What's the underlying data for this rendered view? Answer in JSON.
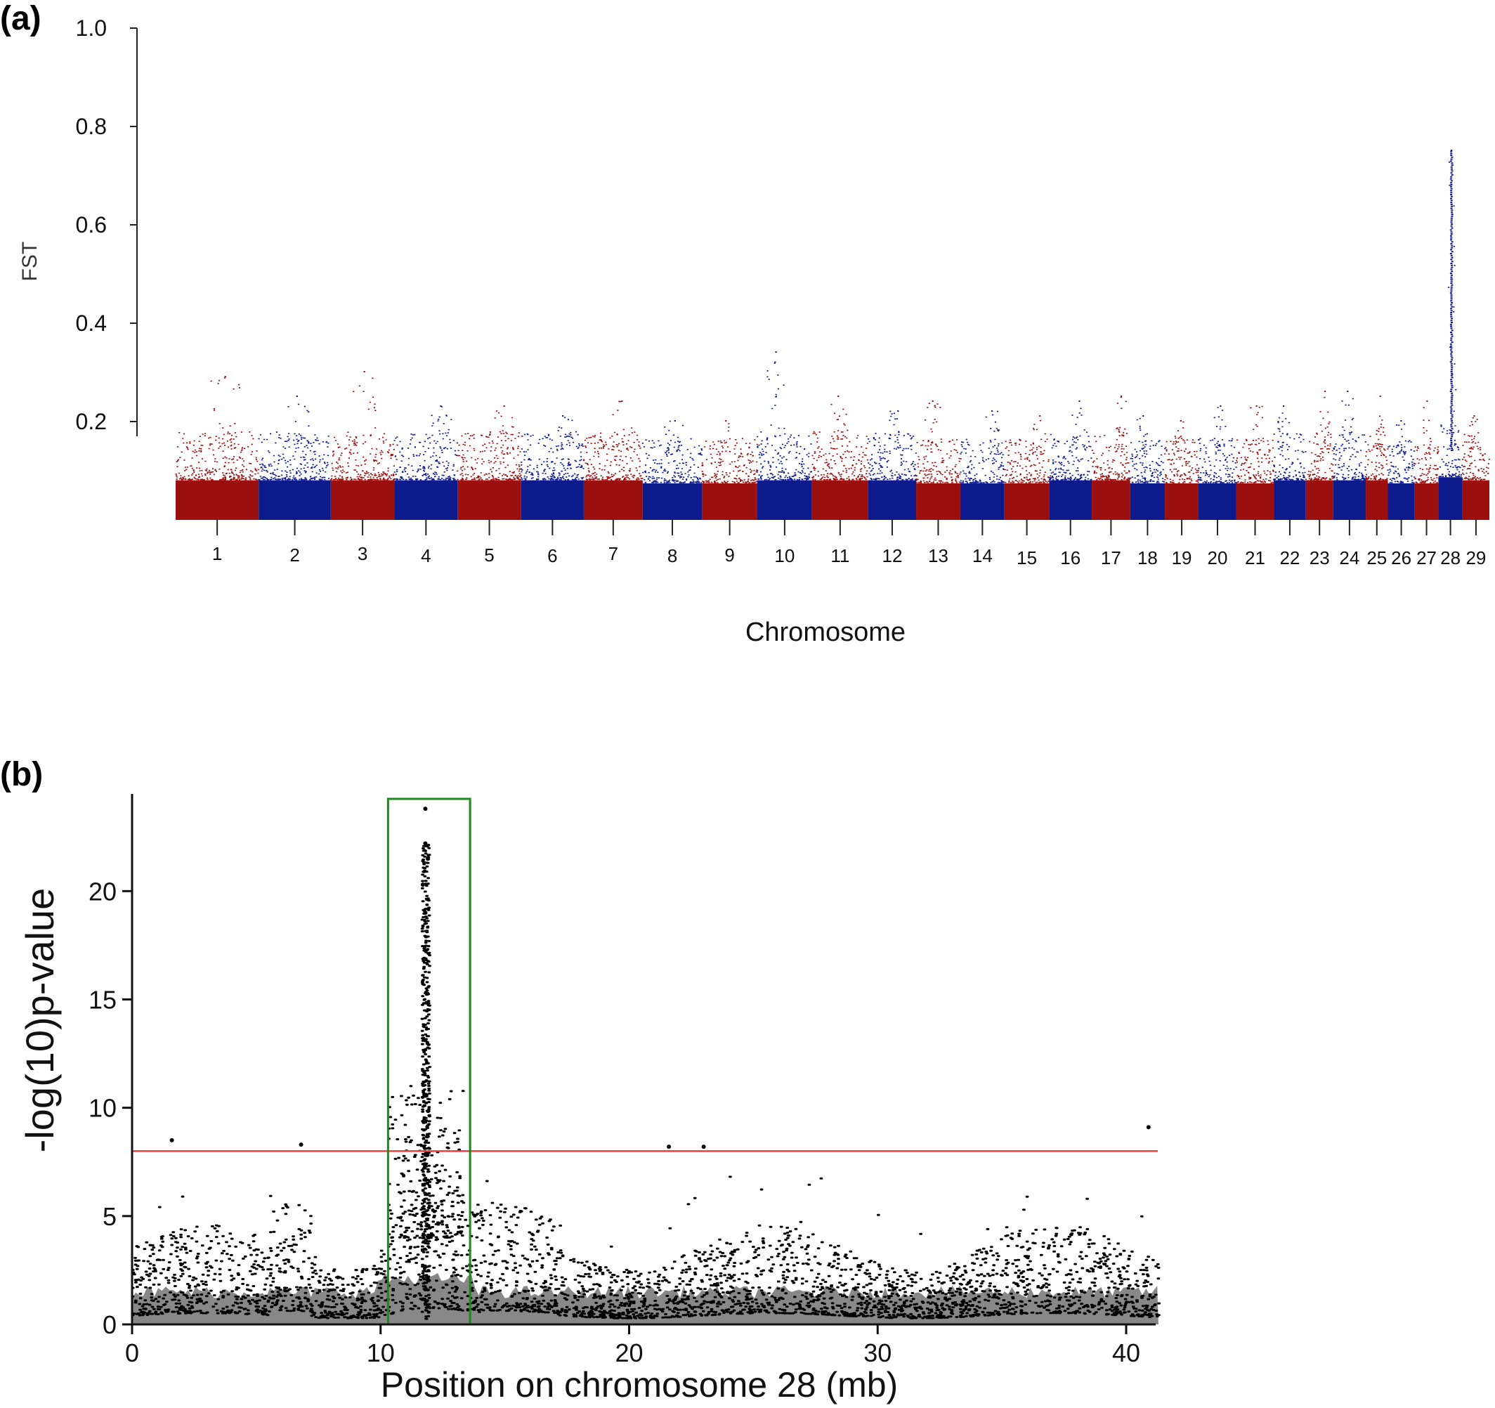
{
  "chart_data": [
    {
      "panel": "(a)",
      "type": "scatter",
      "ylabel": "FST",
      "xlabel": "Chromosome",
      "ylim": [
        0.2,
        1.0
      ],
      "yticks": [
        "0.2",
        "0.4",
        "0.6",
        "0.8",
        "1.0"
      ],
      "colors": [
        "#9b0f0f",
        "#0d1a8c"
      ],
      "chromosomes": [
        {
          "label": "1",
          "size": 158,
          "base": 0.13,
          "peak": 0.29
        },
        {
          "label": "2",
          "size": 137,
          "base": 0.13,
          "peak": 0.25
        },
        {
          "label": "3",
          "size": 121,
          "base": 0.13,
          "peak": 0.3
        },
        {
          "label": "4",
          "size": 120,
          "base": 0.13,
          "peak": 0.23
        },
        {
          "label": "5",
          "size": 121,
          "base": 0.13,
          "peak": 0.23
        },
        {
          "label": "6",
          "size": 119,
          "base": 0.13,
          "peak": 0.21
        },
        {
          "label": "7",
          "size": 112,
          "base": 0.13,
          "peak": 0.24
        },
        {
          "label": "8",
          "size": 113,
          "base": 0.12,
          "peak": 0.2
        },
        {
          "label": "9",
          "size": 105,
          "base": 0.12,
          "peak": 0.2
        },
        {
          "label": "10",
          "size": 104,
          "base": 0.13,
          "peak": 0.34
        },
        {
          "label": "11",
          "size": 107,
          "base": 0.13,
          "peak": 0.25
        },
        {
          "label": "12",
          "size": 91,
          "base": 0.13,
          "peak": 0.22
        },
        {
          "label": "13",
          "size": 84,
          "base": 0.12,
          "peak": 0.24
        },
        {
          "label": "14",
          "size": 84,
          "base": 0.12,
          "peak": 0.22
        },
        {
          "label": "15",
          "size": 85,
          "base": 0.12,
          "peak": 0.21
        },
        {
          "label": "16",
          "size": 81,
          "base": 0.13,
          "peak": 0.24
        },
        {
          "label": "17",
          "size": 73,
          "base": 0.13,
          "peak": 0.25
        },
        {
          "label": "18",
          "size": 66,
          "base": 0.12,
          "peak": 0.21
        },
        {
          "label": "19",
          "size": 64,
          "base": 0.12,
          "peak": 0.2
        },
        {
          "label": "20",
          "size": 72,
          "base": 0.12,
          "peak": 0.23
        },
        {
          "label": "21",
          "size": 71,
          "base": 0.12,
          "peak": 0.23
        },
        {
          "label": "22",
          "size": 61,
          "base": 0.13,
          "peak": 0.23
        },
        {
          "label": "23",
          "size": 52,
          "base": 0.13,
          "peak": 0.26
        },
        {
          "label": "24",
          "size": 62,
          "base": 0.13,
          "peak": 0.26
        },
        {
          "label": "25",
          "size": 42,
          "base": 0.13,
          "peak": 0.25
        },
        {
          "label": "26",
          "size": 51,
          "base": 0.12,
          "peak": 0.2
        },
        {
          "label": "27",
          "size": 45,
          "base": 0.12,
          "peak": 0.24
        },
        {
          "label": "28",
          "size": 46,
          "base": 0.14,
          "peak": 0.75
        },
        {
          "label": "29",
          "size": 51,
          "base": 0.13,
          "peak": 0.21
        }
      ]
    },
    {
      "panel": "(b)",
      "type": "scatter",
      "ylabel": "-log(10)p-value",
      "xlabel": "Position on chromosome 28 (mb)",
      "xlim": [
        0,
        41.3
      ],
      "ylim": [
        0,
        24
      ],
      "xticks": [
        "0",
        "10",
        "20",
        "30",
        "40"
      ],
      "yticks": [
        "0",
        "5",
        "10",
        "15",
        "20"
      ],
      "threshold": 8.0,
      "threshold_color": "#e8403f",
      "highlight_region": {
        "x": [
          10.3,
          13.6
        ],
        "y": [
          0,
          24
        ],
        "color": "#1a8a1a"
      },
      "peak": {
        "x": 11.8,
        "y": 23.8
      },
      "point_color": "#000000",
      "fill_color": "#888888",
      "top_points": [
        {
          "x": 11.8,
          "y": 23.8
        },
        {
          "x": 11.8,
          "y": 22.2
        },
        {
          "x": 11.9,
          "y": 21.5
        },
        {
          "x": 11.7,
          "y": 20.3
        },
        {
          "x": 11.8,
          "y": 19.0
        },
        {
          "x": 1.6,
          "y": 8.5
        },
        {
          "x": 6.8,
          "y": 8.3
        },
        {
          "x": 21.6,
          "y": 8.2
        },
        {
          "x": 23.0,
          "y": 8.2
        },
        {
          "x": 40.9,
          "y": 9.1
        }
      ]
    }
  ]
}
